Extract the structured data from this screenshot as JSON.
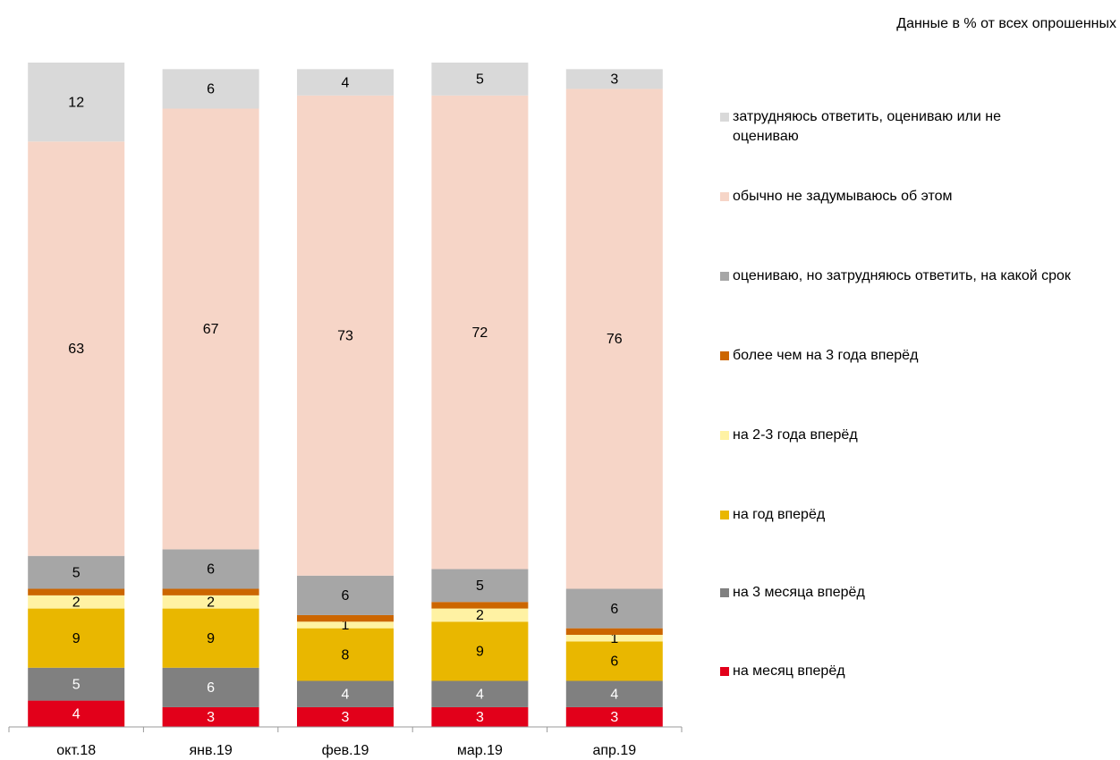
{
  "chart_data": {
    "type": "stacked_bar",
    "subtitle": "Данные в % от всех опрошенных",
    "categories": [
      "окт.18",
      "янв.19",
      "фев.19",
      "мар.19",
      "апр.19"
    ],
    "ylim": [
      0,
      101
    ],
    "series": [
      {
        "name": "на месяц вперёд",
        "color": "#e2001a",
        "label_color": "#ffffff",
        "values": [
          4,
          3,
          3,
          3,
          3
        ]
      },
      {
        "name": "на 3 месяца вперёд",
        "color": "#808080",
        "label_color": "#ffffff",
        "values": [
          5,
          6,
          4,
          4,
          4
        ]
      },
      {
        "name": "на год вперёд",
        "color": "#e9b700",
        "label_color": "#000000",
        "values": [
          9,
          9,
          8,
          9,
          6
        ]
      },
      {
        "name": "на 2-3 года вперёд",
        "color": "#fff2a3",
        "label_color": "#000000",
        "values": [
          2,
          2,
          1,
          2,
          1
        ]
      },
      {
        "name": "более чем на 3 года вперёд",
        "color": "#cc6600",
        "labels": false,
        "values": [
          1,
          1,
          1,
          1,
          1
        ]
      },
      {
        "name": "оцениваю, но затрудняюсь ответить, на какой срок",
        "color": "#a6a6a6",
        "label_color": "#000000",
        "values": [
          5,
          6,
          6,
          5,
          6
        ]
      },
      {
        "name": "обычно не задумываюсь об этом",
        "color": "#f6d5c7",
        "label_color": "#000000",
        "values": [
          63,
          67,
          73,
          72,
          76
        ]
      },
      {
        "name": "затрудняюсь ответить, оцениваю или не оцениваю",
        "color": "#d9d9d9",
        "label_color": "#000000",
        "values": [
          12,
          6,
          4,
          5,
          3
        ]
      }
    ]
  }
}
